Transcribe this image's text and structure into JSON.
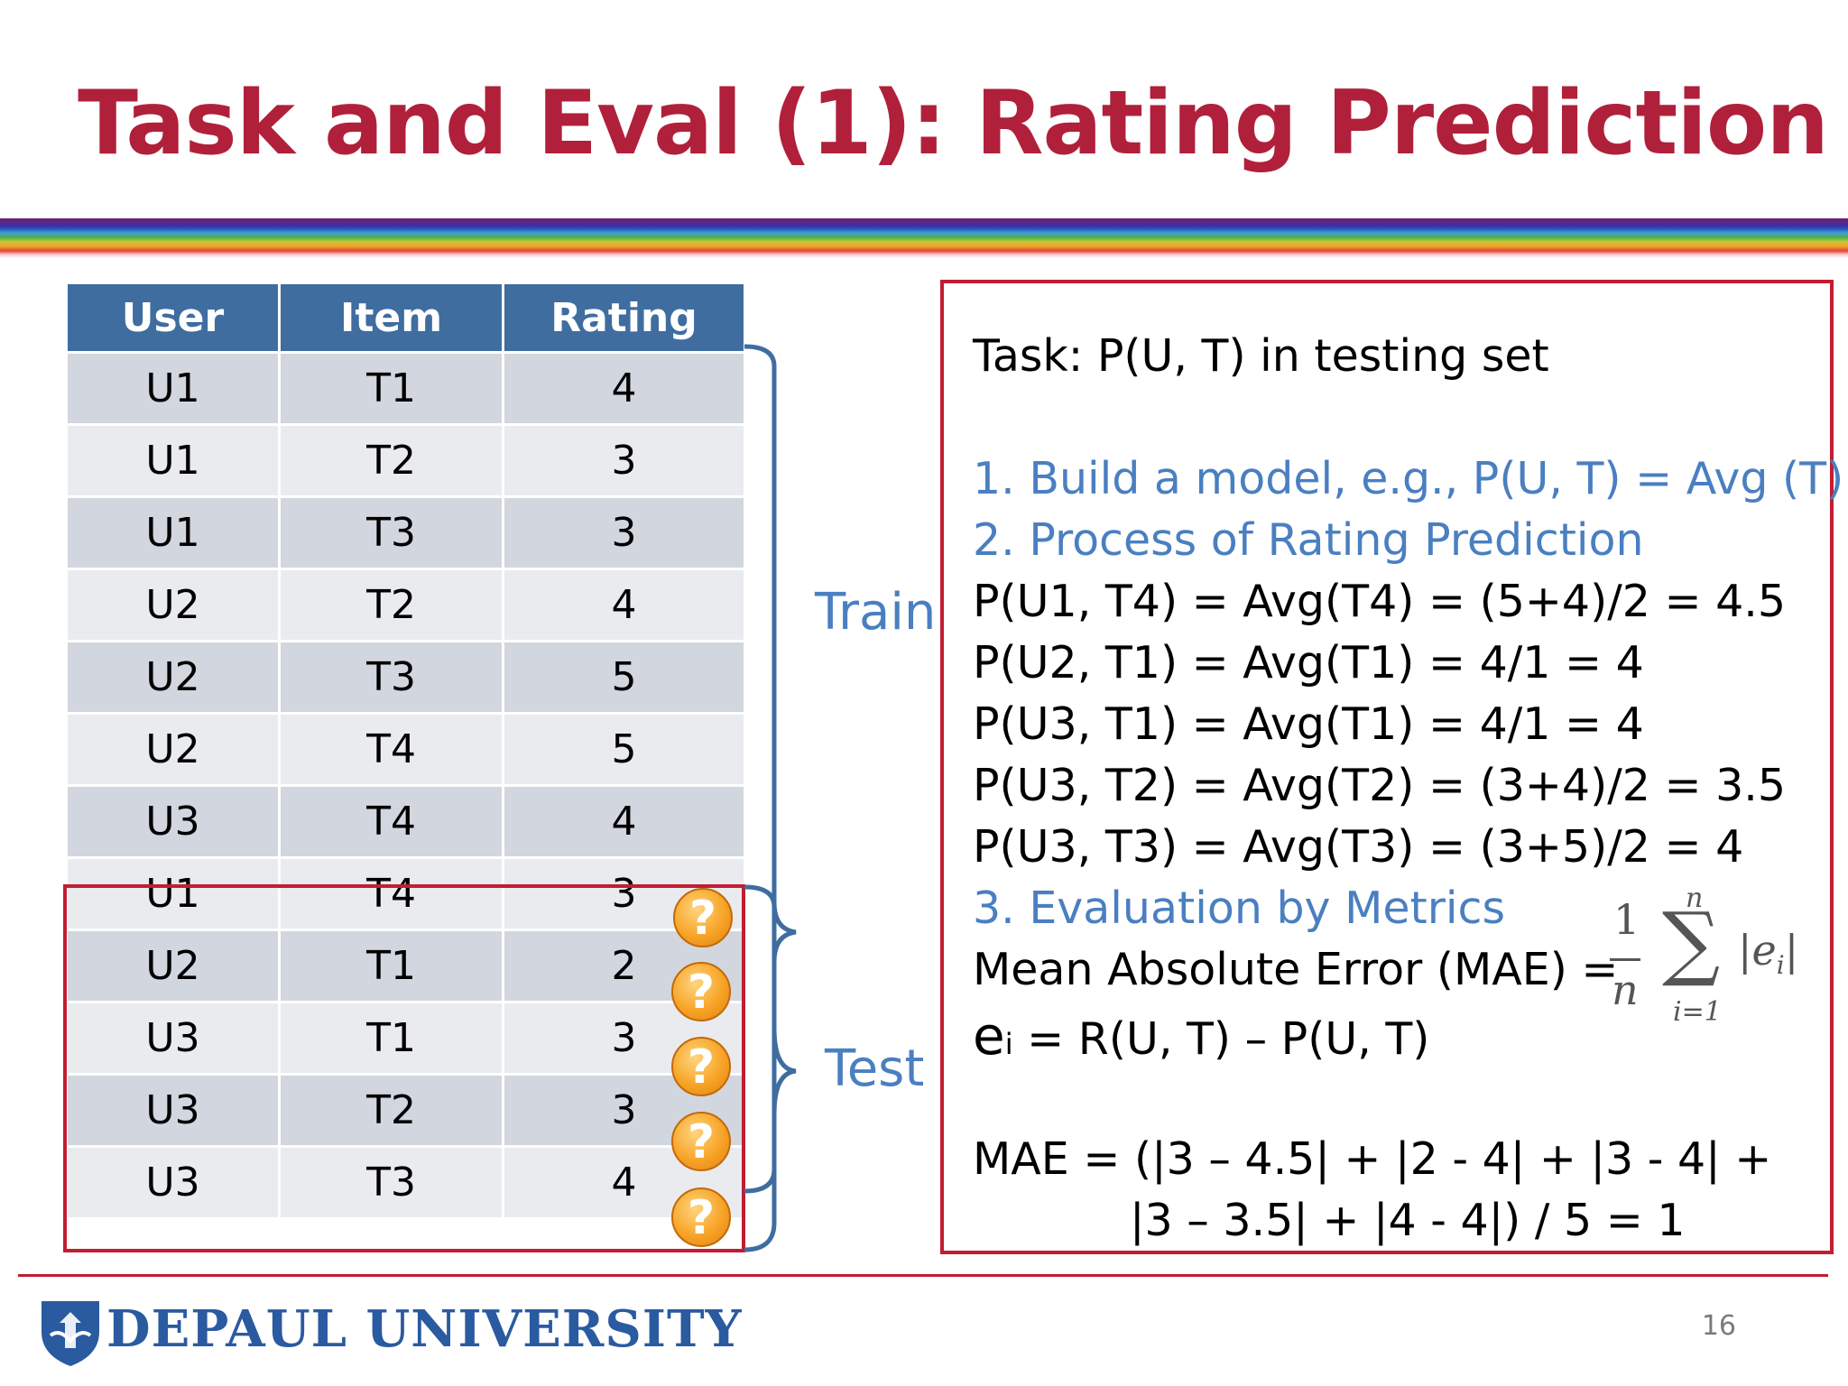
{
  "slide": {
    "title": "Task and Eval (1): Rating Prediction",
    "page_number": "16"
  },
  "table": {
    "headers": [
      "User",
      "Item",
      "Rating"
    ],
    "train_rows": [
      [
        "U1",
        "T1",
        "4"
      ],
      [
        "U1",
        "T2",
        "3"
      ],
      [
        "U1",
        "T3",
        "3"
      ],
      [
        "U2",
        "T2",
        "4"
      ],
      [
        "U2",
        "T3",
        "5"
      ],
      [
        "U2",
        "T4",
        "5"
      ],
      [
        "U3",
        "T4",
        "4"
      ]
    ],
    "test_rows": [
      [
        "U1",
        "T4",
        "3"
      ],
      [
        "U2",
        "T1",
        "2"
      ],
      [
        "U3",
        "T1",
        "3"
      ],
      [
        "U3",
        "T2",
        "3"
      ],
      [
        "U3",
        "T3",
        "4"
      ]
    ],
    "test_marker": "?"
  },
  "labels": {
    "train": "Train",
    "test": "Test"
  },
  "panel": {
    "task": "Task: P(U, T) in testing set",
    "step1": "1. Build a model, e.g.,  P(U, T) = Avg (T)",
    "step2": "2. Process of Rating Prediction",
    "predictions": [
      "P(U1, T4) = Avg(T4) = (5+4)/2 = 4.5",
      "P(U2, T1) = Avg(T1) = 4/1 = 4",
      "P(U3, T1) = Avg(T1) = 4/1 = 4",
      "P(U3, T2) = Avg(T2) = (3+4)/2 = 3.5",
      "P(U3, T3) = Avg(T3) = (3+5)/2 = 4"
    ],
    "step3": "3. Evaluation by Metrics",
    "mae_label": "Mean Absolute Error (MAE) =",
    "formula": {
      "numerator": "1",
      "denominator": "n",
      "sum_top": "n",
      "sum_bottom": "i=1",
      "term": "|e",
      "term_sub": "i",
      "term_close": "|"
    },
    "ei_e": "e",
    "ei_sub": "i",
    "ei_rest": " = R(U, T) – P(U, T)",
    "mae_calc_1": "MAE = (|3 – 4.5| + |2 - 4| + |3 - 4| +",
    "mae_calc_2": "|3 – 3.5| + |4 - 4|) / 5 = 1"
  },
  "footer": {
    "university": "DEPAUL UNIVERSITY"
  },
  "colors": {
    "title_red": "#b0203a",
    "header_blue": "#3f6da0",
    "accent_blue": "#4a7fc1",
    "box_red": "#c21d33"
  }
}
